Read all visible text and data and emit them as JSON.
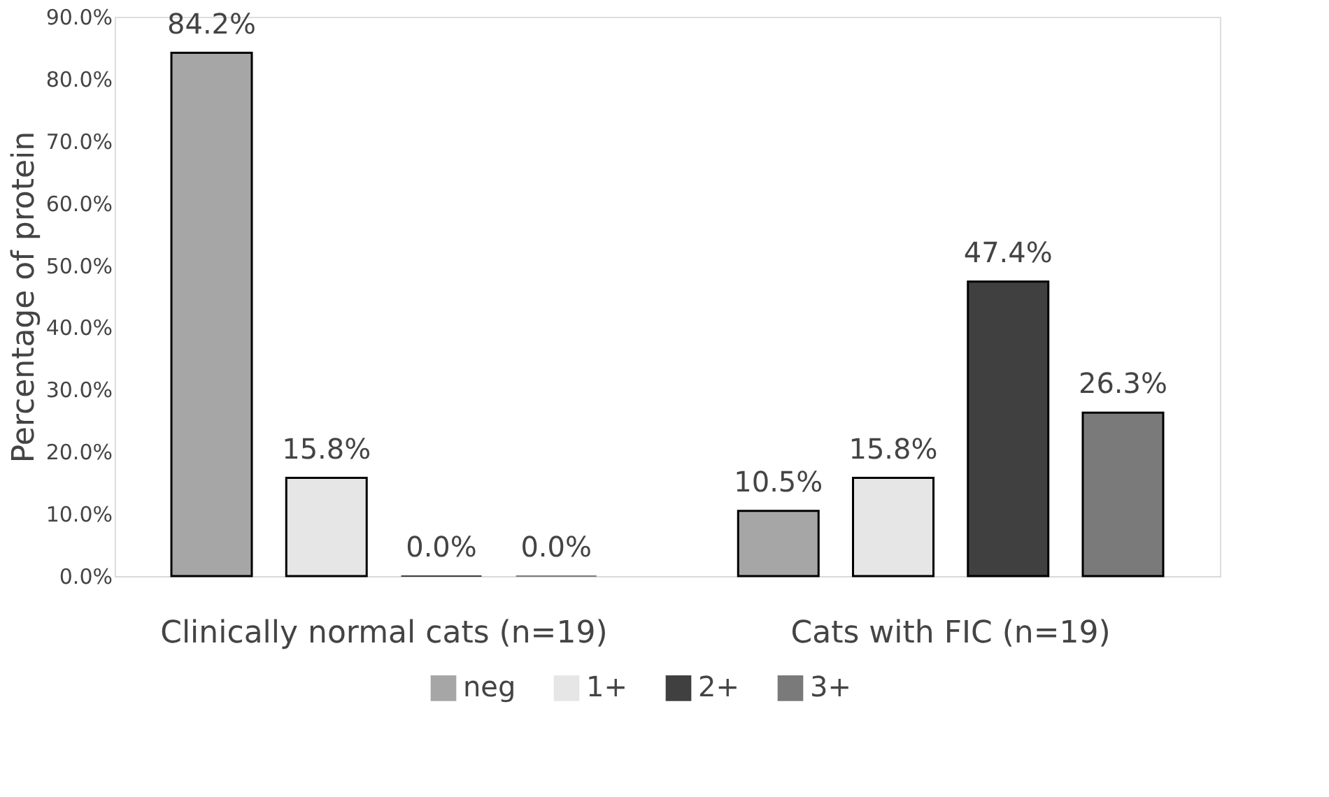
{
  "chart_data": {
    "type": "bar",
    "ylabel": "Percentage of protein",
    "categories": [
      "Clinically normal cats (n=19)",
      "Cats with FIC (n=19)"
    ],
    "series": [
      {
        "name": "neg",
        "color": "#a6a6a6",
        "values": [
          84.2,
          10.5
        ],
        "value_labels": [
          "84.2%",
          "10.5%"
        ]
      },
      {
        "name": "1+",
        "color": "#e6e6e6",
        "values": [
          15.8,
          15.8
        ],
        "value_labels": [
          "15.8%",
          "15.8%"
        ]
      },
      {
        "name": "2+",
        "color": "#404040",
        "values": [
          0,
          47.4
        ],
        "value_labels": [
          "0.0%",
          "47.4%"
        ]
      },
      {
        "name": "3+",
        "color": "#7a7a7a",
        "values": [
          0,
          26.3
        ],
        "value_labels": [
          "0.0%",
          "26.3%"
        ]
      }
    ],
    "ylim": [
      0,
      90
    ],
    "yticks": [
      {
        "value": 0,
        "label": "0.0%"
      },
      {
        "value": 10,
        "label": "10.0%"
      },
      {
        "value": 20,
        "label": "20.0%"
      },
      {
        "value": 30,
        "label": "30.0%"
      },
      {
        "value": 40,
        "label": "40.0%"
      },
      {
        "value": 50,
        "label": "50.0%"
      },
      {
        "value": 60,
        "label": "60.0%"
      },
      {
        "value": 70,
        "label": "70.0%"
      },
      {
        "value": 80,
        "label": "80.0%"
      },
      {
        "value": 90,
        "label": "90.0%"
      }
    ],
    "grid": false,
    "legend": "bottom"
  }
}
